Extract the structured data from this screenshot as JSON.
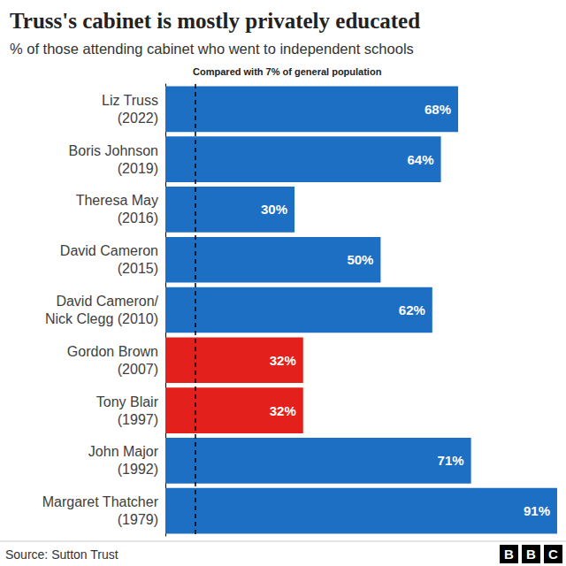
{
  "chart_data": {
    "type": "bar",
    "title": "Truss's cabinet is mostly privately educated",
    "subtitle": "% of those attending cabinet who went to independent schools",
    "categories": [
      "Liz Truss\n(2022)",
      "Boris Johnson\n(2019)",
      "Theresa May\n(2016)",
      "David Cameron\n(2015)",
      "David Cameron/\nNick Clegg (2010)",
      "Gordon Brown\n(2007)",
      "Tony Blair\n(1997)",
      "John Major\n(1992)",
      "Margaret Thatcher\n(1979)"
    ],
    "values": [
      68,
      64,
      30,
      50,
      62,
      32,
      32,
      71,
      91
    ],
    "value_labels": [
      "68%",
      "64%",
      "30%",
      "50%",
      "62%",
      "32%",
      "32%",
      "71%",
      "91%"
    ],
    "colors": [
      "#1d6fc4",
      "#1d6fc4",
      "#1d6fc4",
      "#1d6fc4",
      "#1d6fc4",
      "#e3201b",
      "#e3201b",
      "#1d6fc4",
      "#1d6fc4"
    ],
    "orientation": "horizontal",
    "data_labels": true,
    "xlim": [
      0,
      91
    ],
    "tick_labels": false,
    "grid": false,
    "annotations": [
      {
        "text": "Compared with 7% of general population",
        "x": 7
      }
    ],
    "source": "Source: Sutton Trust",
    "logo": "BBC"
  }
}
